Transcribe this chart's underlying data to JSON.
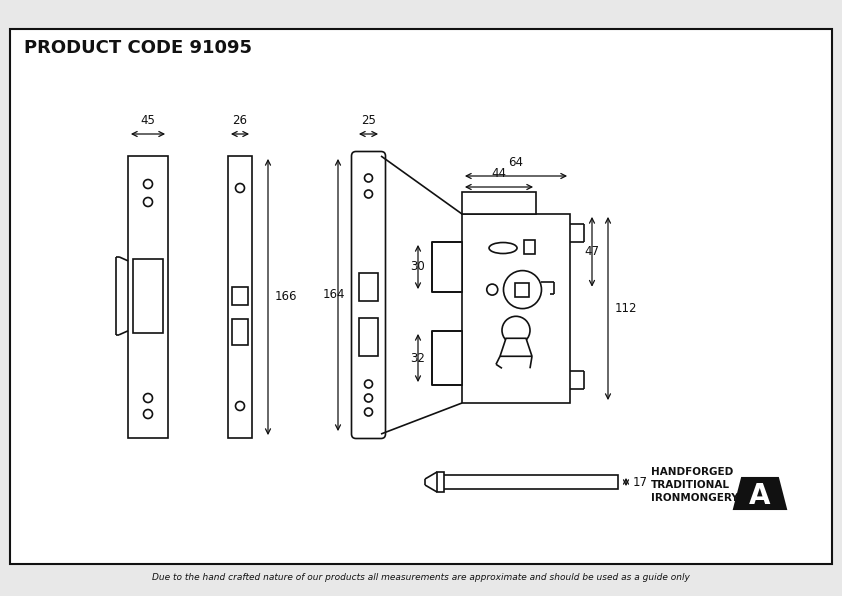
{
  "title": "PRODUCT CODE 91095",
  "footer": "Due to the hand crafted nature of our products all measurements are approximate and should be used as a guide only",
  "brand_text": [
    "HANDFORGED",
    "TRADITIONAL",
    "IRONMONGERY"
  ],
  "bg_color": "#e8e8e8",
  "drawing_bg": "#ffffff",
  "line_color": "#111111",
  "dims": {
    "faceplate_w_label": "45",
    "backplate_w_label": "26",
    "forend_w_label": "25",
    "forend_h_label": "164",
    "backplate_h_label": "166",
    "body_w_label": "64",
    "body_inner_label": "44",
    "body_h_label": "112",
    "latch_h_label": "30",
    "dead_h_label": "32",
    "spindle_h_label": "17",
    "dim47_label": "47"
  }
}
